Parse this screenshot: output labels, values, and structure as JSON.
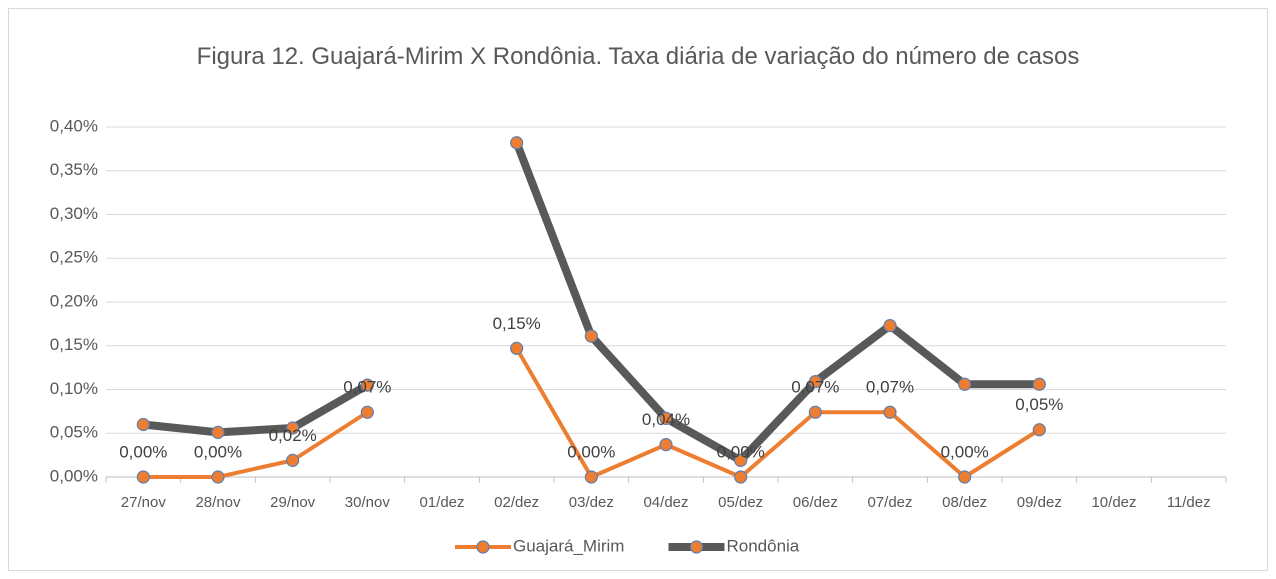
{
  "chart_data": {
    "type": "line",
    "title": "Figura 12. Guajará-Mirim X Rondônia. Taxa diária de variação do número de casos",
    "categories": [
      "27/nov",
      "28/nov",
      "29/nov",
      "30/nov",
      "01/dez",
      "02/dez",
      "03/dez",
      "04/dez",
      "05/dez",
      "06/dez",
      "07/dez",
      "08/dez",
      "09/dez",
      "10/dez",
      "11/dez"
    ],
    "series": [
      {
        "name": "Guajará_Mirim",
        "color": "#ED7D31",
        "width": 4,
        "values": [
          0,
          0,
          0.019,
          0.074,
          null,
          0.147,
          0,
          0.037,
          0,
          0.074,
          0.074,
          0,
          0.054,
          null,
          null
        ],
        "value_labels": [
          "0,00%",
          "0,00%",
          "0,02%",
          "0,07%",
          null,
          "0,15%",
          "0,00%",
          "0,04%",
          "0,00%",
          "0,07%",
          "0,07%",
          "0,00%",
          "0,05%",
          null,
          null
        ]
      },
      {
        "name": "Rondônia",
        "color": "#595959",
        "width": 8,
        "values": [
          0.06,
          0.051,
          0.056,
          0.105,
          null,
          0.382,
          0.161,
          0.067,
          0.019,
          0.109,
          0.173,
          0.106,
          0.106,
          null,
          null
        ]
      }
    ],
    "ylim": [
      0,
      0.4
    ],
    "yticks": [
      {
        "value": 0,
        "label": "0,00%"
      },
      {
        "value": 0.05,
        "label": "0,05%"
      },
      {
        "value": 0.1,
        "label": "0,10%"
      },
      {
        "value": 0.15,
        "label": "0,15%"
      },
      {
        "value": 0.2,
        "label": "0,20%"
      },
      {
        "value": 0.25,
        "label": "0,25%"
      },
      {
        "value": 0.3,
        "label": "0,30%"
      },
      {
        "value": 0.35,
        "label": "0,35%"
      },
      {
        "value": 0.4,
        "label": "0,40%"
      }
    ],
    "grid": true,
    "legend": "bottom"
  }
}
